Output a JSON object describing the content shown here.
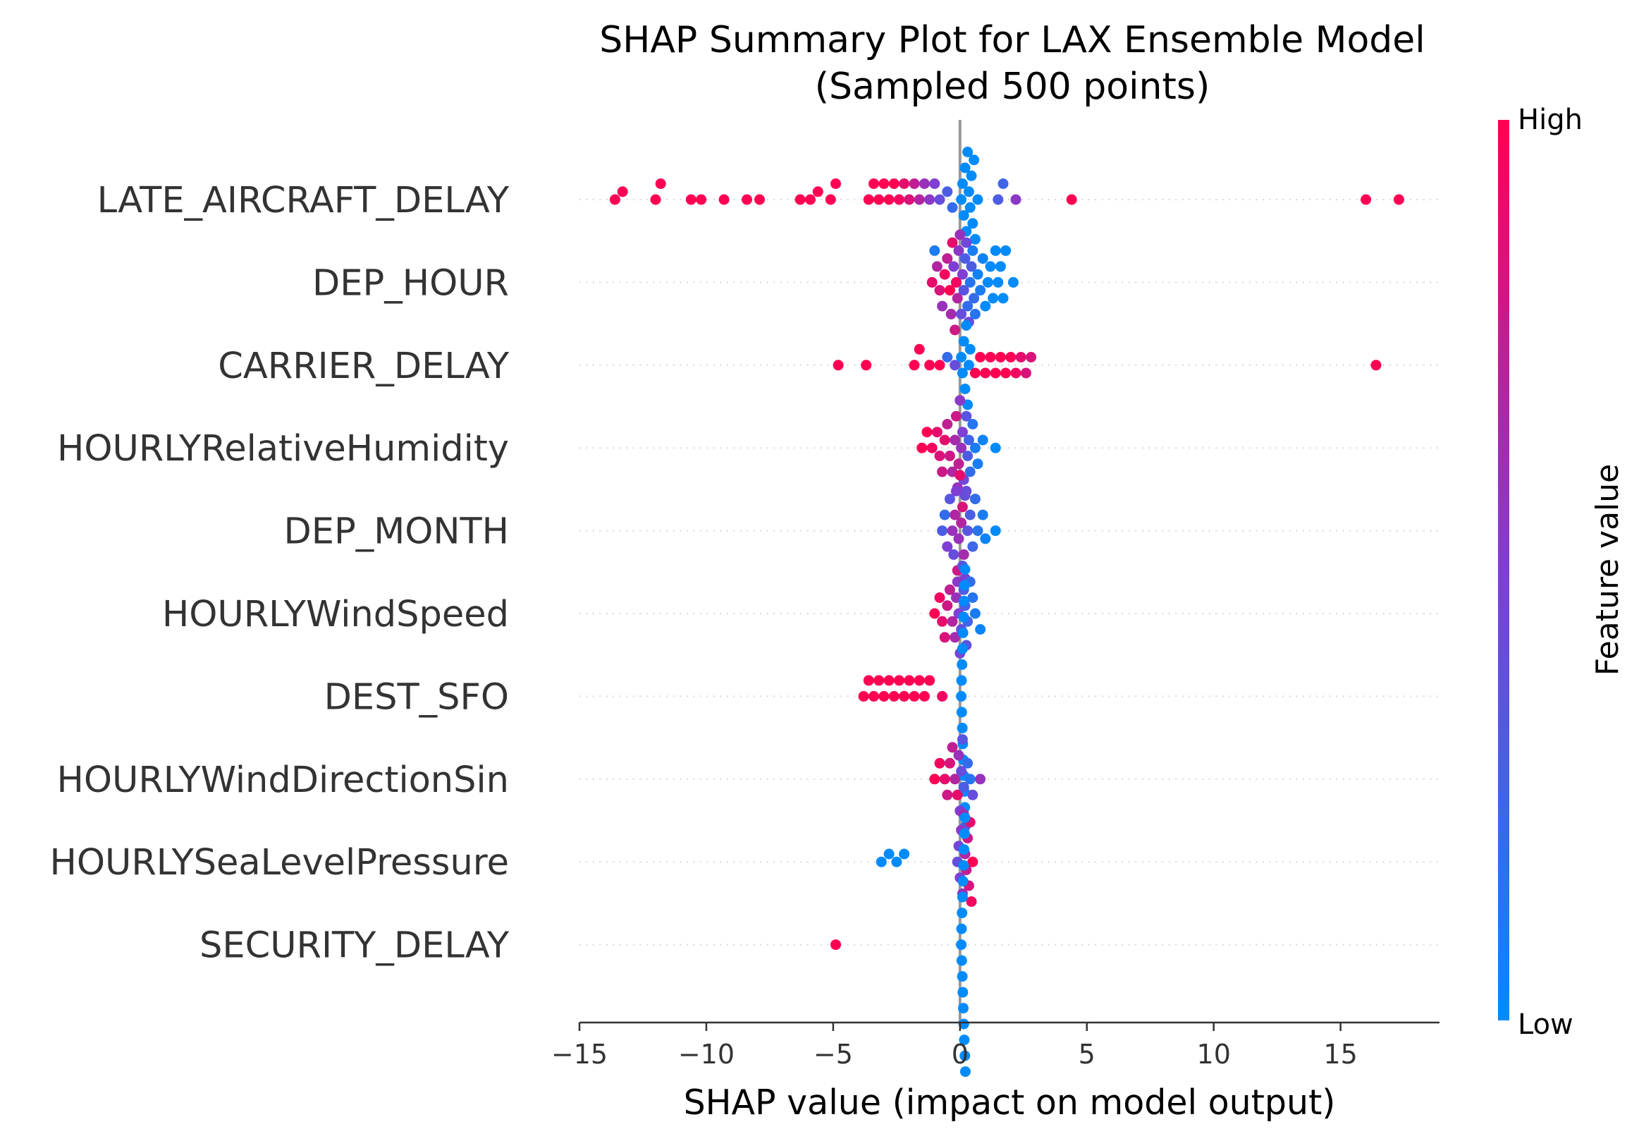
{
  "chart_data": {
    "type": "scatter",
    "subtype": "shap-beeswarm",
    "title_line1": "SHAP Summary Plot for LAX Ensemble Model",
    "title_line2": "(Sampled 500 points)",
    "xlabel": "SHAP value (impact on model output)",
    "xlim": [
      -15,
      18.9
    ],
    "xticks": [
      -15,
      -10,
      -5,
      0,
      5,
      10,
      15
    ],
    "xtick_labels": [
      "−15",
      "−10",
      "−5",
      "0",
      "5",
      "10",
      "15"
    ],
    "grid": false,
    "zero_line": true,
    "colorbar": {
      "title": "Feature value",
      "high_label": "High",
      "low_label": "Low",
      "high_color": "#ff0052",
      "mid_color": "#7f3ed4",
      "low_color": "#008bfb"
    },
    "features": [
      "LATE_AIRCRAFT_DELAY",
      "DEP_HOUR",
      "CARRIER_DELAY",
      "HOURLYRelativeHumidity",
      "DEP_MONTH",
      "HOURLYWindSpeed",
      "DEST_SFO",
      "HOURLYWindDirectionSin",
      "HOURLYSeaLevelPressure",
      "SECURITY_DELAY"
    ],
    "series": [
      {
        "feature": "LATE_AIRCRAFT_DELAY",
        "points": [
          [
            -13.6,
            1
          ],
          [
            -13.3,
            1
          ],
          [
            -12,
            1
          ],
          [
            -11.8,
            1
          ],
          [
            -10.6,
            1
          ],
          [
            -10.2,
            1
          ],
          [
            -9.3,
            1
          ],
          [
            -8.4,
            1
          ],
          [
            -7.9,
            1
          ],
          [
            -6.3,
            1
          ],
          [
            -5.9,
            1
          ],
          [
            -5.6,
            1
          ],
          [
            -5.1,
            1
          ],
          [
            -4.9,
            1
          ],
          [
            -3.6,
            1
          ],
          [
            -3.4,
            1
          ],
          [
            -3.2,
            1
          ],
          [
            -3.0,
            1
          ],
          [
            -2.8,
            1
          ],
          [
            -2.6,
            1
          ],
          [
            -2.4,
            0.95
          ],
          [
            -2.2,
            0.9
          ],
          [
            -2.0,
            0.85
          ],
          [
            -1.8,
            0.75
          ],
          [
            -1.6,
            0.7
          ],
          [
            -1.4,
            0.6
          ],
          [
            -1.2,
            0.55
          ],
          [
            -1.0,
            0.5
          ],
          [
            -0.8,
            0.4
          ],
          [
            -0.5,
            0.3
          ],
          [
            -0.3,
            0.2
          ],
          [
            0.05,
            0
          ],
          [
            0.1,
            0
          ],
          [
            0.15,
            0
          ],
          [
            0.2,
            0
          ],
          [
            0.25,
            0
          ],
          [
            0.3,
            0
          ],
          [
            0.35,
            0
          ],
          [
            0.4,
            0
          ],
          [
            0.45,
            0
          ],
          [
            0.5,
            0
          ],
          [
            0.55,
            0
          ],
          [
            0.6,
            0
          ],
          [
            0.7,
            0
          ],
          [
            1.5,
            0.3
          ],
          [
            1.7,
            0.25
          ],
          [
            2.2,
            0.55
          ],
          [
            4.4,
            1
          ],
          [
            16.0,
            1
          ],
          [
            17.3,
            1
          ]
        ]
      },
      {
        "feature": "DEP_HOUR",
        "points": [
          [
            -1.1,
            0.9
          ],
          [
            -0.9,
            0.7
          ],
          [
            -0.8,
            0.85
          ],
          [
            -0.7,
            0.6
          ],
          [
            -0.6,
            0.95
          ],
          [
            -0.5,
            0.75
          ],
          [
            -0.4,
            1
          ],
          [
            -0.35,
            0.65
          ],
          [
            -0.3,
            0.9
          ],
          [
            -0.25,
            0.5
          ],
          [
            -0.2,
            0.8
          ],
          [
            -0.15,
            0.95
          ],
          [
            -0.1,
            0.7
          ],
          [
            -0.05,
            0.55
          ],
          [
            0.0,
            0.6
          ],
          [
            0.05,
            0.4
          ],
          [
            0.1,
            0.5
          ],
          [
            0.15,
            0.35
          ],
          [
            0.2,
            0.3
          ],
          [
            0.25,
            0.45
          ],
          [
            0.3,
            0.2
          ],
          [
            0.35,
            0.4
          ],
          [
            0.4,
            0.15
          ],
          [
            0.45,
            0.3
          ],
          [
            0.5,
            0.1
          ],
          [
            0.55,
            0.2
          ],
          [
            0.6,
            0.15
          ],
          [
            0.7,
            0.05
          ],
          [
            0.8,
            0.1
          ],
          [
            0.9,
            0.05
          ],
          [
            1.0,
            0
          ],
          [
            1.1,
            0
          ],
          [
            1.2,
            0
          ],
          [
            1.3,
            0
          ],
          [
            1.4,
            0
          ],
          [
            1.5,
            0
          ],
          [
            1.6,
            0
          ],
          [
            1.7,
            0
          ],
          [
            1.8,
            0
          ],
          [
            2.1,
            0
          ],
          [
            -1.0,
            0.1
          ]
        ]
      },
      {
        "feature": "CARRIER_DELAY",
        "points": [
          [
            -4.8,
            1
          ],
          [
            -3.7,
            1
          ],
          [
            -1.8,
            1
          ],
          [
            -1.6,
            1
          ],
          [
            -1.2,
            1
          ],
          [
            -0.8,
            1
          ],
          [
            -0.5,
            0.2
          ],
          [
            -0.2,
            0.4
          ],
          [
            0.05,
            0
          ],
          [
            0.1,
            0
          ],
          [
            0.15,
            0
          ],
          [
            0.2,
            0
          ],
          [
            0.25,
            0
          ],
          [
            0.3,
            0
          ],
          [
            0.35,
            0
          ],
          [
            0.4,
            0
          ],
          [
            0.6,
            1
          ],
          [
            0.8,
            1
          ],
          [
            1.0,
            1
          ],
          [
            1.2,
            1
          ],
          [
            1.4,
            1
          ],
          [
            1.6,
            1
          ],
          [
            1.8,
            1
          ],
          [
            2.0,
            1
          ],
          [
            2.2,
            0.95
          ],
          [
            2.4,
            0.9
          ],
          [
            2.6,
            0.85
          ],
          [
            2.8,
            0.85
          ],
          [
            16.4,
            1
          ]
        ]
      },
      {
        "feature": "HOURLYRelativeHumidity",
        "points": [
          [
            -1.5,
            1
          ],
          [
            -1.3,
            1
          ],
          [
            -1.1,
            0.95
          ],
          [
            -0.9,
            0.9
          ],
          [
            -0.8,
            0.85
          ],
          [
            -0.7,
            0.8
          ],
          [
            -0.6,
            0.9
          ],
          [
            -0.5,
            0.75
          ],
          [
            -0.4,
            0.8
          ],
          [
            -0.3,
            0.7
          ],
          [
            -0.2,
            0.65
          ],
          [
            -0.15,
            0.8
          ],
          [
            -0.1,
            0.6
          ],
          [
            -0.05,
            0.75
          ],
          [
            0.0,
            0.55
          ],
          [
            0.05,
            0.6
          ],
          [
            0.1,
            0.5
          ],
          [
            0.15,
            0.45
          ],
          [
            0.2,
            0.4
          ],
          [
            0.25,
            0.35
          ],
          [
            0.3,
            0.3
          ],
          [
            0.35,
            0.25
          ],
          [
            0.4,
            0.2
          ],
          [
            0.5,
            0.15
          ],
          [
            0.6,
            0.1
          ],
          [
            0.7,
            0.1
          ],
          [
            0.9,
            0.05
          ],
          [
            1.4,
            0
          ]
        ]
      },
      {
        "feature": "DEP_MONTH",
        "points": [
          [
            -0.7,
            0.3
          ],
          [
            -0.6,
            0.2
          ],
          [
            -0.5,
            0.5
          ],
          [
            -0.4,
            0.35
          ],
          [
            -0.3,
            0.6
          ],
          [
            -0.25,
            0.4
          ],
          [
            -0.2,
            0.7
          ],
          [
            -0.15,
            0.5
          ],
          [
            -0.1,
            0.8
          ],
          [
            -0.05,
            0.6
          ],
          [
            0.0,
            0.9
          ],
          [
            0.05,
            0.7
          ],
          [
            0.1,
            0.85
          ],
          [
            0.15,
            0.65
          ],
          [
            0.2,
            0.5
          ],
          [
            0.25,
            0.4
          ],
          [
            0.3,
            0.35
          ],
          [
            0.4,
            0.3
          ],
          [
            0.5,
            0.25
          ],
          [
            0.6,
            0.2
          ],
          [
            0.7,
            0.15
          ],
          [
            0.9,
            0.1
          ],
          [
            1.0,
            0.05
          ],
          [
            1.4,
            0
          ]
        ]
      },
      {
        "feature": "HOURLYWindSpeed",
        "points": [
          [
            -1.0,
            1
          ],
          [
            -0.8,
            0.95
          ],
          [
            -0.7,
            0.9
          ],
          [
            -0.6,
            0.85
          ],
          [
            -0.5,
            0.8
          ],
          [
            -0.4,
            0.75
          ],
          [
            -0.3,
            0.7
          ],
          [
            -0.2,
            0.65
          ],
          [
            -0.15,
            0.6
          ],
          [
            -0.1,
            0.55
          ],
          [
            -0.05,
            0.5
          ],
          [
            0.0,
            0.45
          ],
          [
            0.05,
            0.4
          ],
          [
            0.1,
            0.35
          ],
          [
            0.15,
            0.3
          ],
          [
            0.2,
            0.3
          ],
          [
            0.25,
            0.35
          ],
          [
            0.3,
            0.25
          ],
          [
            0.4,
            0.2
          ],
          [
            0.5,
            0.15
          ],
          [
            0.6,
            0.1
          ],
          [
            0.8,
            0.05
          ]
        ]
      },
      {
        "feature": "DEST_SFO",
        "points": [
          [
            -3.8,
            1
          ],
          [
            -3.6,
            1
          ],
          [
            -3.4,
            1
          ],
          [
            -3.2,
            1
          ],
          [
            -3.0,
            1
          ],
          [
            -2.8,
            1
          ],
          [
            -2.6,
            1
          ],
          [
            -2.4,
            1
          ],
          [
            -2.2,
            1
          ],
          [
            -2.0,
            1
          ],
          [
            -1.8,
            1
          ],
          [
            -1.6,
            1
          ],
          [
            -1.4,
            1
          ],
          [
            -1.2,
            1
          ],
          [
            -0.7,
            0.95
          ],
          [
            0.05,
            0
          ],
          [
            0.06,
            0
          ],
          [
            0.07,
            0
          ],
          [
            0.08,
            0
          ],
          [
            0.09,
            0
          ],
          [
            0.1,
            0
          ],
          [
            0.11,
            0
          ],
          [
            0.12,
            0
          ],
          [
            0.13,
            0
          ],
          [
            0.14,
            0
          ],
          [
            0.15,
            0
          ],
          [
            0.16,
            0
          ],
          [
            0.17,
            0
          ],
          [
            0.18,
            0
          ],
          [
            0.19,
            0
          ],
          [
            0.2,
            0
          ]
        ]
      },
      {
        "feature": "HOURLYWindDirectionSin",
        "points": [
          [
            -1.0,
            1
          ],
          [
            -0.8,
            0.95
          ],
          [
            -0.6,
            0.9
          ],
          [
            -0.5,
            0.8
          ],
          [
            -0.4,
            0.85
          ],
          [
            -0.3,
            0.75
          ],
          [
            -0.2,
            0.7
          ],
          [
            -0.1,
            0.9
          ],
          [
            -0.05,
            0.6
          ],
          [
            0.0,
            0.5
          ],
          [
            0.05,
            0.4
          ],
          [
            0.1,
            0.35
          ],
          [
            0.15,
            0.3
          ],
          [
            0.2,
            0.25
          ],
          [
            0.3,
            0.2
          ],
          [
            0.4,
            0.15
          ],
          [
            0.5,
            0.4
          ],
          [
            0.8,
            0.6
          ]
        ]
      },
      {
        "feature": "HOURLYSeaLevelPressure",
        "points": [
          [
            -3.1,
            0
          ],
          [
            -2.8,
            0
          ],
          [
            -2.5,
            0
          ],
          [
            -2.2,
            0
          ],
          [
            -0.1,
            0.4
          ],
          [
            -0.05,
            0.45
          ],
          [
            0.0,
            0.5
          ],
          [
            0.05,
            0.55
          ],
          [
            0.1,
            0.6
          ],
          [
            0.15,
            0.65
          ],
          [
            0.2,
            0.7
          ],
          [
            0.25,
            0.75
          ],
          [
            0.3,
            0.8
          ],
          [
            0.35,
            0.85
          ],
          [
            0.4,
            0.9
          ],
          [
            0.45,
            0.95
          ],
          [
            0.5,
            1
          ]
        ]
      },
      {
        "feature": "SECURITY_DELAY",
        "points": [
          [
            -4.9,
            1
          ],
          [
            0.05,
            0
          ],
          [
            0.06,
            0
          ],
          [
            0.07,
            0
          ],
          [
            0.08,
            0
          ],
          [
            0.09,
            0
          ],
          [
            0.1,
            0
          ],
          [
            0.11,
            0
          ],
          [
            0.12,
            0
          ],
          [
            0.13,
            0
          ],
          [
            0.14,
            0
          ],
          [
            0.15,
            0
          ],
          [
            0.16,
            0
          ],
          [
            0.17,
            0
          ],
          [
            0.18,
            0
          ],
          [
            0.19,
            0
          ],
          [
            0.2,
            0
          ],
          [
            0.21,
            0
          ]
        ]
      }
    ]
  }
}
